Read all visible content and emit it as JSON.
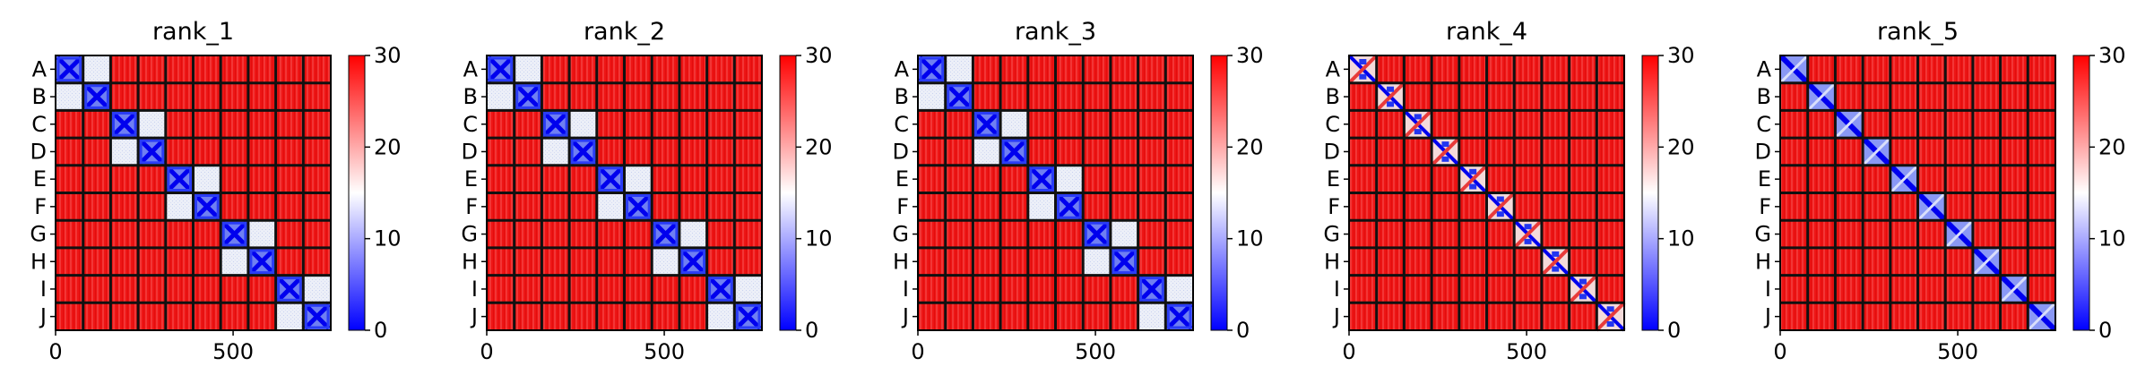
{
  "chart_data": [
    {
      "type": "heatmap",
      "title": "rank_1",
      "pattern": "pair",
      "ylabels": [
        "A",
        "B",
        "C",
        "D",
        "E",
        "F",
        "G",
        "H",
        "I",
        "J"
      ],
      "xticks": [
        0,
        500
      ],
      "xlim": [
        0,
        775
      ],
      "colorbar_ticks": [
        0,
        10,
        20,
        30
      ],
      "vmin": 0,
      "vmax": 30,
      "colormap": "bwr"
    },
    {
      "type": "heatmap",
      "title": "rank_2",
      "pattern": "pair",
      "ylabels": [
        "A",
        "B",
        "C",
        "D",
        "E",
        "F",
        "G",
        "H",
        "I",
        "J"
      ],
      "xticks": [
        0,
        500
      ],
      "xlim": [
        0,
        775
      ],
      "colorbar_ticks": [
        0,
        10,
        20,
        30
      ],
      "vmin": 0,
      "vmax": 30,
      "colormap": "bwr"
    },
    {
      "type": "heatmap",
      "title": "rank_3",
      "pattern": "pair",
      "ylabels": [
        "A",
        "B",
        "C",
        "D",
        "E",
        "F",
        "G",
        "H",
        "I",
        "J"
      ],
      "xticks": [
        0,
        500
      ],
      "xlim": [
        0,
        775
      ],
      "colorbar_ticks": [
        0,
        10,
        20,
        30
      ],
      "vmin": 0,
      "vmax": 30,
      "colormap": "bwr"
    },
    {
      "type": "heatmap",
      "title": "rank_4",
      "pattern": "cross",
      "ylabels": [
        "A",
        "B",
        "C",
        "D",
        "E",
        "F",
        "G",
        "H",
        "I",
        "J"
      ],
      "xticks": [
        0,
        500
      ],
      "xlim": [
        0,
        775
      ],
      "colorbar_ticks": [
        0,
        10,
        20,
        30
      ],
      "vmin": 0,
      "vmax": 30,
      "colormap": "bwr"
    },
    {
      "type": "heatmap",
      "title": "rank_5",
      "pattern": "diag",
      "ylabels": [
        "A",
        "B",
        "C",
        "D",
        "E",
        "F",
        "G",
        "H",
        "I",
        "J"
      ],
      "xticks": [
        0,
        500
      ],
      "xlim": [
        0,
        775
      ],
      "colorbar_ticks": [
        0,
        10,
        20,
        30
      ],
      "vmin": 0,
      "vmax": 30,
      "colormap": "bwr"
    }
  ],
  "colors": {
    "high": "#ee1111",
    "mid": "#f2f2f2",
    "low": "#0000ff",
    "frame": "#111111"
  }
}
